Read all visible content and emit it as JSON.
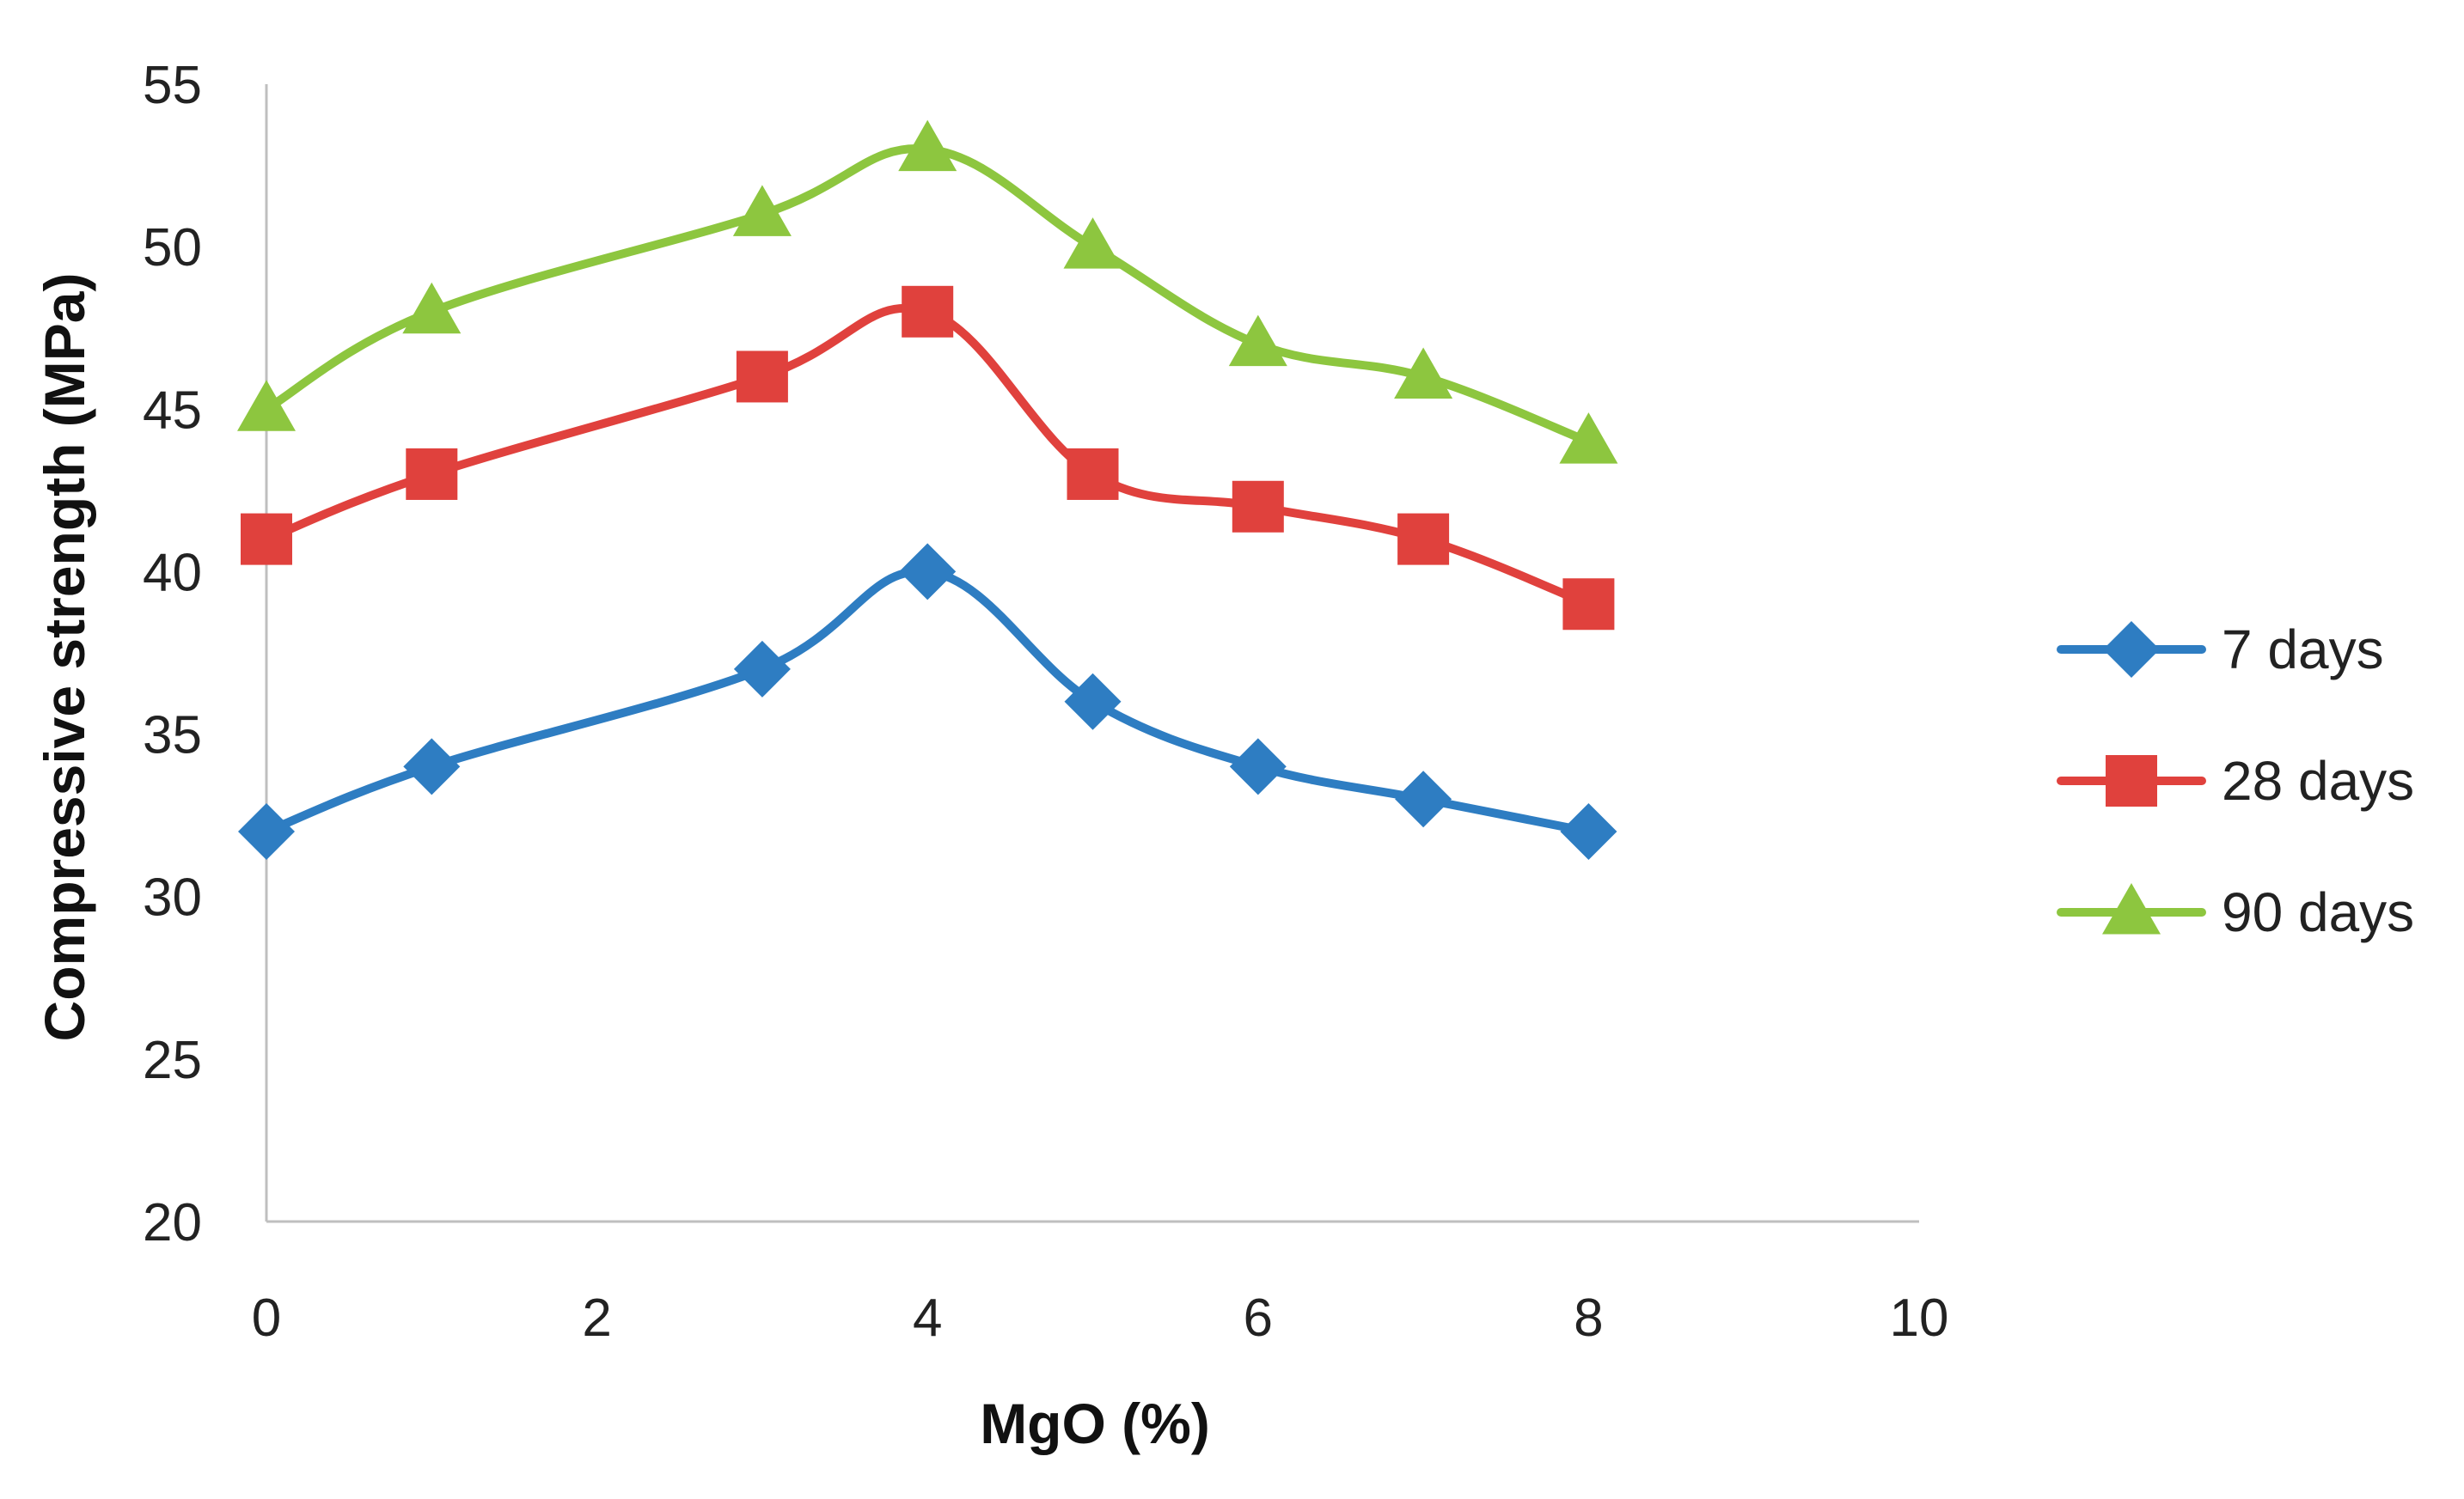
{
  "chart_data": {
    "type": "line",
    "title": "",
    "xlabel": "MgO (%)",
    "ylabel": "Compressive strength (MPa)",
    "xlim": [
      0,
      10
    ],
    "ylim": [
      20,
      55
    ],
    "xticks": [
      0,
      2,
      4,
      6,
      8,
      10
    ],
    "yticks": [
      20,
      25,
      30,
      35,
      40,
      45,
      50,
      55
    ],
    "x": [
      0,
      1,
      3,
      4,
      5,
      6,
      7,
      8
    ],
    "grid": false,
    "legend_position": "right",
    "series": [
      {
        "name": "7 days",
        "color": "#2E7DC2",
        "marker": "diamond",
        "values": [
          32,
          34,
          37,
          40,
          36,
          34,
          33,
          32
        ]
      },
      {
        "name": "28 days",
        "color": "#E0413D",
        "marker": "square",
        "values": [
          41,
          43,
          46,
          48,
          43,
          42,
          41,
          39
        ]
      },
      {
        "name": "90 days",
        "color": "#8DC63F",
        "marker": "triangle",
        "values": [
          45,
          48,
          51,
          53,
          50,
          47,
          46,
          44
        ]
      }
    ],
    "axis_color": "#BFBFBF"
  }
}
